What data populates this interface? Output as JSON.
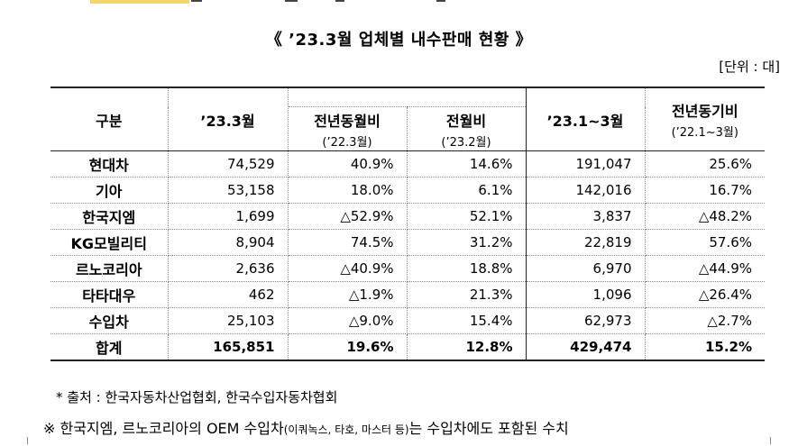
{
  "title": "《 ’23.3월 업체별 내수판매 현황 》",
  "unit": "[단위 : 대]",
  "header": {
    "col0": "구분",
    "col1": "’23.3월",
    "col2": "전년동월비",
    "col2_sub": "(’22.3월)",
    "col3": "전월비",
    "col3_sub": "(’23.2월)",
    "col4": "’23.1~3월",
    "col5": "전년동기비",
    "col5_sub": "(’22.1~3월)"
  },
  "rows": [
    {
      "name": "현대차",
      "mar": "74,529",
      "yoy": "40.9%",
      "mom": "14.6%",
      "ytd": "191,047",
      "ytd_yoy": "25.6%"
    },
    {
      "name": "기아",
      "mar": "53,158",
      "yoy": "18.0%",
      "mom": "6.1%",
      "ytd": "142,016",
      "ytd_yoy": "16.7%"
    },
    {
      "name": "한국지엠",
      "mar": "1,699",
      "yoy": "△52.9%",
      "mom": "52.1%",
      "ytd": "3,837",
      "ytd_yoy": "△48.2%"
    },
    {
      "name": "KG모빌리티",
      "mar": "8,904",
      "yoy": "74.5%",
      "mom": "31.2%",
      "ytd": "22,819",
      "ytd_yoy": "57.6%"
    },
    {
      "name": "르노코리아",
      "mar": "2,636",
      "yoy": "△40.9%",
      "mom": "18.8%",
      "ytd": "6,970",
      "ytd_yoy": "△44.9%"
    },
    {
      "name": "타타대우",
      "mar": "462",
      "yoy": "△1.9%",
      "mom": "21.3%",
      "ytd": "1,096",
      "ytd_yoy": "△26.4%"
    },
    {
      "name": "수입차",
      "mar": "25,103",
      "yoy": "△9.0%",
      "mom": "15.4%",
      "ytd": "62,973",
      "ytd_yoy": "△2.7%"
    },
    {
      "name": "합계",
      "mar": "165,851",
      "yoy": "19.6%",
      "mom": "12.8%",
      "ytd": "429,474",
      "ytd_yoy": "15.2%"
    }
  ],
  "source": "* 출처 : 한국자동차산업협회, 한국수입자동차협회",
  "note_prefix": "※ 한국지엠, 르노코리아의 OEM 수입차",
  "note_small": "(이쿼녹스, 타호, 마스터 등)",
  "note_suffix": "는 수입차에도 포함된 수치"
}
